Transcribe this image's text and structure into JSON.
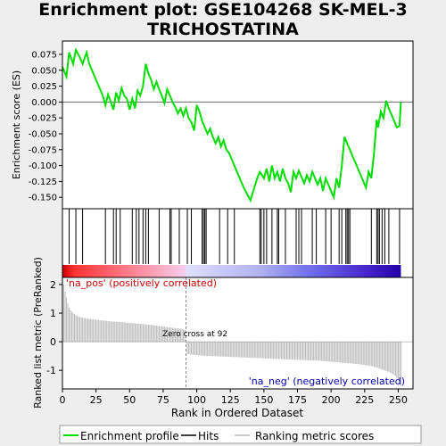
{
  "title_lines": [
    "Enrichment plot: GSE104268 SK-MEL-3",
    "TRICHOSTATINA"
  ],
  "colors": {
    "profile": "#00dd00",
    "hits": "#000000",
    "ranking": "#bbbbbb",
    "background": "#eeeeee",
    "pos_label": "#cc0000",
    "neg_label": "#0000aa"
  },
  "chart_data": [
    {
      "type": "line",
      "name": "enrichment-profile",
      "ylabel": "Enrichment score (ES)",
      "xlim": [
        0,
        261
      ],
      "ylim": [
        -0.168,
        0.096
      ],
      "yticks": [
        -0.15,
        -0.125,
        -0.1,
        -0.075,
        -0.05,
        -0.025,
        0.0,
        0.025,
        0.05,
        0.075
      ],
      "ytick_labels": [
        "-0.150",
        "-0.125",
        "-0.100",
        "-0.075",
        "-0.050",
        "-0.025",
        "0.000",
        "0.025",
        "0.050",
        "0.075"
      ],
      "x": [
        0,
        3,
        5,
        8,
        10,
        13,
        15,
        18,
        20,
        23,
        25,
        28,
        30,
        32,
        34,
        36,
        38,
        40,
        42,
        44,
        46,
        48,
        50,
        52,
        54,
        56,
        58,
        60,
        62,
        64,
        66,
        68,
        70,
        72,
        74,
        76,
        78,
        80,
        82,
        84,
        86,
        88,
        90,
        92,
        94,
        96,
        98,
        100,
        102,
        104,
        106,
        108,
        110,
        112,
        114,
        116,
        118,
        120,
        122,
        124,
        126,
        128,
        130,
        135,
        140,
        145,
        147,
        150,
        152,
        154,
        156,
        158,
        160,
        162,
        164,
        166,
        168,
        170,
        172,
        174,
        176,
        178,
        180,
        182,
        184,
        186,
        188,
        190,
        192,
        194,
        196,
        198,
        200,
        202,
        204,
        206,
        208,
        210,
        212,
        214,
        216,
        218,
        220,
        222,
        224,
        226,
        228,
        230,
        232,
        234,
        235,
        237,
        239,
        241,
        243,
        245,
        247,
        249,
        251,
        252
      ],
      "y": [
        0.055,
        0.04,
        0.078,
        0.06,
        0.082,
        0.07,
        0.06,
        0.078,
        0.06,
        0.045,
        0.035,
        0.02,
        0.01,
        -0.005,
        0.012,
        0.0,
        -0.012,
        0.015,
        0.002,
        0.022,
        0.01,
        0.005,
        -0.012,
        0.005,
        -0.01,
        0.018,
        0.01,
        0.025,
        0.06,
        0.045,
        0.035,
        0.02,
        0.032,
        0.02,
        0.01,
        -0.002,
        0.02,
        0.01,
        0.0,
        -0.008,
        -0.018,
        -0.01,
        -0.022,
        -0.01,
        -0.025,
        -0.032,
        -0.045,
        -0.005,
        -0.015,
        -0.03,
        -0.04,
        -0.05,
        -0.042,
        -0.055,
        -0.065,
        -0.055,
        -0.07,
        -0.06,
        -0.075,
        -0.08,
        -0.09,
        -0.1,
        -0.11,
        -0.135,
        -0.155,
        -0.12,
        -0.11,
        -0.12,
        -0.105,
        -0.125,
        -0.1,
        -0.12,
        -0.11,
        -0.125,
        -0.105,
        -0.12,
        -0.128,
        -0.142,
        -0.11,
        -0.12,
        -0.108,
        -0.118,
        -0.128,
        -0.115,
        -0.125,
        -0.11,
        -0.12,
        -0.13,
        -0.12,
        -0.14,
        -0.12,
        -0.13,
        -0.14,
        -0.15,
        -0.12,
        -0.135,
        -0.1,
        -0.055,
        -0.065,
        -0.075,
        -0.085,
        -0.095,
        -0.105,
        -0.115,
        -0.125,
        -0.135,
        -0.11,
        -0.12,
        -0.08,
        -0.028,
        -0.04,
        -0.015,
        -0.025,
        0.002,
        -0.01,
        -0.02,
        -0.03,
        -0.04,
        -0.038,
        0.0
      ]
    },
    {
      "type": "hits",
      "name": "gene-hits",
      "xlim": [
        0,
        261
      ],
      "positions": [
        5,
        10,
        15,
        32,
        38,
        40,
        43,
        52,
        55,
        57,
        60,
        62,
        64,
        72,
        80,
        81,
        87,
        93,
        96,
        104,
        105,
        106,
        107,
        117,
        123,
        128,
        147,
        148,
        150,
        152,
        156,
        160,
        161,
        166,
        174,
        176,
        178,
        186,
        189,
        196,
        200,
        206,
        208,
        211,
        212,
        213,
        214,
        230,
        234,
        235,
        236,
        238,
        240,
        243,
        251
      ]
    },
    {
      "type": "area",
      "name": "ranked-list-metric",
      "xlabel": "Rank in Ordered Dataset",
      "ylabel": "Ranked list metric (PreRanked)",
      "xlim": [
        0,
        261
      ],
      "ylim": [
        -1.65,
        2.25
      ],
      "yticks": [
        -1,
        0,
        1,
        2
      ],
      "ytick_labels": [
        "-1",
        "0",
        "1",
        "2"
      ],
      "xticks": [
        0,
        25,
        50,
        75,
        100,
        125,
        150,
        175,
        200,
        225,
        250
      ],
      "xtick_labels": [
        "0",
        "25",
        "50",
        "75",
        "100",
        "125",
        "150",
        "175",
        "200",
        "225",
        "250"
      ],
      "x": [
        1,
        2,
        3,
        4,
        5,
        6,
        8,
        10,
        12,
        15,
        20,
        25,
        30,
        40,
        50,
        60,
        70,
        80,
        88,
        91,
        92,
        93,
        95,
        100,
        110,
        120,
        130,
        140,
        150,
        160,
        170,
        180,
        190,
        200,
        210,
        220,
        230,
        235,
        240,
        245,
        248,
        250,
        252
      ],
      "y": [
        2.0,
        1.75,
        1.55,
        1.35,
        1.2,
        1.1,
        1.0,
        0.92,
        0.88,
        0.84,
        0.8,
        0.77,
        0.74,
        0.7,
        0.66,
        0.62,
        0.56,
        0.5,
        0.45,
        0.42,
        0.0,
        -0.42,
        -0.44,
        -0.47,
        -0.5,
        -0.52,
        -0.54,
        -0.56,
        -0.58,
        -0.6,
        -0.62,
        -0.64,
        -0.66,
        -0.7,
        -0.74,
        -0.78,
        -0.85,
        -0.92,
        -1.0,
        -1.1,
        -1.2,
        -1.35,
        -1.55
      ],
      "zero_cross": 92,
      "zero_cross_label": "Zero cross at 92",
      "pos_label": "'na_pos' (positively correlated)",
      "neg_label": "'na_neg' (negatively correlated)"
    }
  ],
  "legend": [
    {
      "label": "Enrichment profile",
      "swatch": "profile"
    },
    {
      "label": "Hits",
      "swatch": "hits"
    },
    {
      "label": "Ranking metric scores",
      "swatch": "ranking"
    }
  ]
}
